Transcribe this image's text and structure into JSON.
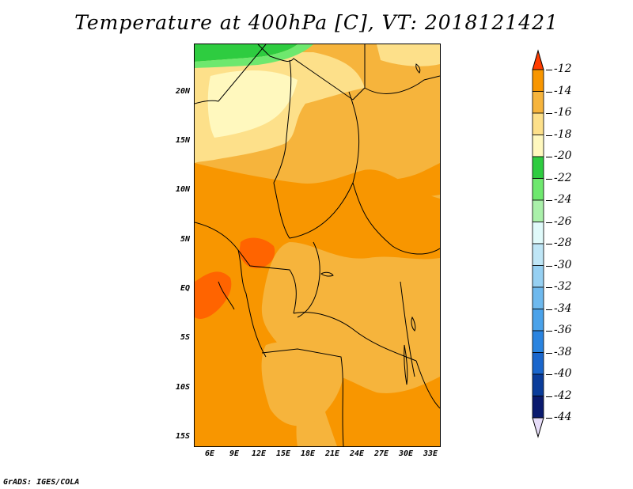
{
  "title": "Temperature at 400hPa [C], VT: 2018121421",
  "footer": "GrADS: IGES/COLA",
  "map": {
    "lat_labels": [
      "20N",
      "15N",
      "10N",
      "5N",
      "EQ",
      "5S",
      "10S",
      "15S"
    ],
    "lon_labels": [
      "6E",
      "9E",
      "12E",
      "15E",
      "18E",
      "21E",
      "24E",
      "27E",
      "30E",
      "33E"
    ],
    "lat_range": [
      -16,
      25
    ],
    "lon_range": [
      3,
      33
    ]
  },
  "colorbar": {
    "labels": [
      "-12",
      "-14",
      "-16",
      "-18",
      "-20",
      "-22",
      "-24",
      "-26",
      "-28",
      "-30",
      "-32",
      "-34",
      "-36",
      "-38",
      "-40",
      "-42",
      "-44"
    ],
    "colors": [
      "#ff6400",
      "#f89600",
      "#f6b43c",
      "#fde08a",
      "#fff8be",
      "#2ecc40",
      "#6ee86e",
      "#aaf0aa",
      "#e0fafa",
      "#bfe6f6",
      "#96d0f2",
      "#6eb9ee",
      "#4aa2ea",
      "#2a84e0",
      "#1a66cc",
      "#0a3c9a",
      "#0a1a6e"
    ],
    "over_color": "#ff3c00",
    "under_color": "#e6dcf8"
  }
}
